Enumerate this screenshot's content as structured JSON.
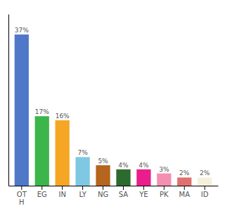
{
  "chart_data": {
    "type": "bar",
    "categories": [
      "OT\nH",
      "EG",
      "IN",
      "LY",
      "NG",
      "SA",
      "YE",
      "PK",
      "MA",
      "ID"
    ],
    "values": [
      37,
      17,
      16,
      7,
      5,
      4,
      4,
      3,
      2,
      2
    ],
    "value_labels": [
      "37%",
      "17%",
      "16%",
      "7%",
      "5%",
      "4%",
      "4%",
      "3%",
      "2%",
      "2%"
    ],
    "colors": [
      "#4f79c8",
      "#3cb54a",
      "#f5a623",
      "#7ec8e3",
      "#b5651d",
      "#2d6a2d",
      "#e91e8c",
      "#f48fb1",
      "#e07070",
      "#f5f0dc"
    ],
    "ylim": [
      0,
      42
    ],
    "data_labels": true,
    "tick_labels": "x",
    "grid": false
  }
}
